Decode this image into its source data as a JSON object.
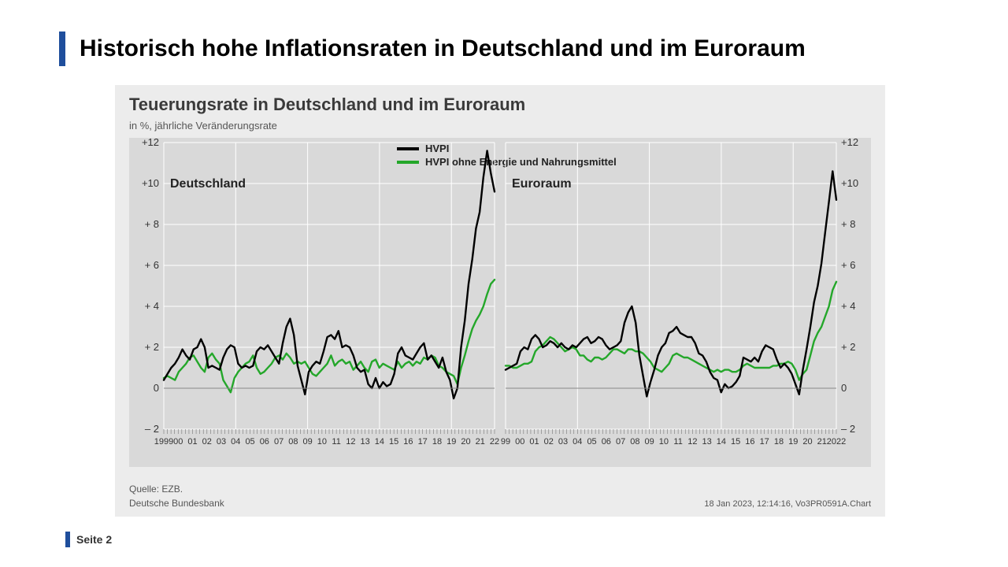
{
  "accent_color": "#1f4e9c",
  "page_title": "Historisch hohe Inflationsraten in Deutschland und im Euroraum",
  "page_number": "Seite 2",
  "chart": {
    "type": "line",
    "background_card": "#ececec",
    "background_plot": "#d9d9d9",
    "gridline_color": "#ffffff",
    "gridline_width": 1,
    "title": "Teuerungsrate in Deutschland und im Euroraum",
    "subtitle": "in %, jährliche Veränderungsrate",
    "title_fontsize": 22,
    "subtitle_fontsize": 13,
    "legend": {
      "items": [
        {
          "label": "HVPI",
          "color": "#000000",
          "width": 2.4
        },
        {
          "label": "HVPI ohne Energie und Nahrungsmittel",
          "color": "#24a72a",
          "width": 2.4
        }
      ]
    },
    "yaxis": {
      "min": -2,
      "max": 12,
      "ticks": [
        -2,
        0,
        2,
        4,
        6,
        8,
        10,
        12
      ],
      "tick_labels": [
        "– 2",
        "0",
        "+ 2",
        "+ 4",
        "+ 6",
        "+ 8",
        "+10",
        "+12"
      ]
    },
    "xaxis": {
      "start_year": 1999,
      "end_year": 2022,
      "tick_years": [
        1999,
        2000,
        2001,
        2002,
        2003,
        2004,
        2005,
        2006,
        2007,
        2008,
        2009,
        2010,
        2011,
        2012,
        2013,
        2014,
        2015,
        2016,
        2017,
        2018,
        2019,
        2020,
        2021,
        2022
      ],
      "left_labels": [
        "1999",
        "00",
        "01",
        "02",
        "03",
        "04",
        "05",
        "06",
        "07",
        "08",
        "09",
        "10",
        "11",
        "12",
        "13",
        "14",
        "15",
        "16",
        "17",
        "18",
        "19",
        "20",
        "21",
        "22"
      ],
      "right_labels": [
        "99",
        "00",
        "01",
        "02",
        "03",
        "04",
        "05",
        "06",
        "07",
        "08",
        "09",
        "10",
        "11",
        "12",
        "13",
        "14",
        "15",
        "16",
        "17",
        "18",
        "19",
        "20",
        "21",
        "2022"
      ]
    },
    "panels": [
      {
        "label": "Deutschland",
        "series": {
          "hvpi": [
            0.4,
            0.7,
            1.0,
            1.2,
            1.5,
            1.9,
            1.6,
            1.4,
            1.9,
            2.0,
            2.4,
            2.0,
            1.0,
            1.1,
            1.0,
            0.9,
            1.5,
            1.9,
            2.1,
            2.0,
            1.2,
            1.0,
            1.1,
            1.0,
            1.1,
            1.8,
            2.0,
            1.9,
            2.1,
            1.8,
            1.5,
            1.2,
            2.2,
            3.0,
            3.4,
            2.6,
            1.1,
            0.4,
            -0.3,
            0.8,
            1.1,
            1.3,
            1.2,
            1.8,
            2.5,
            2.6,
            2.4,
            2.8,
            2.0,
            2.1,
            2.0,
            1.6,
            1.0,
            0.8,
            0.9,
            0.2,
            0.0,
            0.5,
            0.0,
            0.3,
            0.1,
            0.2,
            0.7,
            1.7,
            2.0,
            1.6,
            1.5,
            1.4,
            1.7,
            2.0,
            2.2,
            1.4,
            1.6,
            1.3,
            1.0,
            1.5,
            0.8,
            0.4,
            -0.5,
            0.0,
            2.0,
            3.3,
            5.1,
            6.3,
            7.8,
            8.6,
            10.3,
            11.6,
            10.5,
            9.6
          ],
          "core": [
            0.5,
            0.6,
            0.5,
            0.4,
            0.8,
            1.0,
            1.2,
            1.5,
            1.6,
            1.3,
            1.0,
            0.8,
            1.5,
            1.7,
            1.4,
            1.2,
            0.4,
            0.1,
            -0.2,
            0.5,
            0.8,
            1.0,
            1.2,
            1.3,
            1.6,
            1.0,
            0.7,
            0.8,
            1.0,
            1.2,
            1.5,
            1.6,
            1.4,
            1.7,
            1.5,
            1.2,
            1.3,
            1.2,
            1.3,
            1.0,
            0.7,
            0.6,
            0.8,
            1.0,
            1.2,
            1.6,
            1.1,
            1.3,
            1.4,
            1.2,
            1.3,
            0.9,
            1.1,
            1.3,
            1.0,
            0.8,
            1.3,
            1.4,
            1.0,
            1.2,
            1.1,
            1.0,
            0.9,
            1.3,
            1.0,
            1.2,
            1.3,
            1.1,
            1.3,
            1.2,
            1.5,
            1.4,
            1.6,
            1.5,
            1.1,
            1.0,
            0.8,
            0.7,
            0.6,
            0.2,
            1.0,
            1.6,
            2.3,
            2.9,
            3.3,
            3.6,
            4.0,
            4.6,
            5.1,
            5.3
          ]
        }
      },
      {
        "label": "Euroraum",
        "series": {
          "hvpi": [
            0.9,
            1.0,
            1.1,
            1.2,
            1.8,
            2.0,
            1.9,
            2.4,
            2.6,
            2.4,
            2.0,
            2.1,
            2.3,
            2.2,
            2.0,
            2.2,
            2.0,
            1.9,
            2.1,
            2.0,
            2.2,
            2.4,
            2.5,
            2.2,
            2.3,
            2.5,
            2.4,
            2.1,
            1.9,
            2.0,
            2.1,
            2.3,
            3.2,
            3.7,
            4.0,
            3.2,
            1.6,
            0.6,
            -0.4,
            0.3,
            0.9,
            1.6,
            2.0,
            2.2,
            2.7,
            2.8,
            3.0,
            2.7,
            2.6,
            2.5,
            2.5,
            2.2,
            1.7,
            1.6,
            1.3,
            0.8,
            0.5,
            0.4,
            -0.2,
            0.2,
            0.0,
            0.1,
            0.3,
            0.6,
            1.5,
            1.4,
            1.3,
            1.5,
            1.3,
            1.8,
            2.1,
            2.0,
            1.9,
            1.4,
            1.0,
            1.2,
            1.0,
            0.7,
            0.2,
            -0.3,
            0.9,
            1.9,
            3.0,
            4.2,
            5.0,
            6.1,
            7.6,
            9.1,
            10.6,
            9.2
          ],
          "core": [
            1.1,
            1.1,
            1.0,
            1.0,
            1.1,
            1.2,
            1.2,
            1.3,
            1.8,
            2.0,
            2.1,
            2.3,
            2.5,
            2.4,
            2.2,
            2.0,
            1.8,
            1.9,
            2.0,
            1.9,
            1.6,
            1.6,
            1.4,
            1.3,
            1.5,
            1.5,
            1.4,
            1.5,
            1.7,
            1.9,
            1.9,
            1.8,
            1.7,
            1.9,
            1.9,
            1.8,
            1.8,
            1.7,
            1.5,
            1.3,
            1.0,
            0.9,
            0.8,
            1.0,
            1.2,
            1.6,
            1.7,
            1.6,
            1.5,
            1.5,
            1.4,
            1.3,
            1.2,
            1.1,
            1.0,
            0.9,
            0.8,
            0.9,
            0.8,
            0.9,
            0.9,
            0.8,
            0.8,
            0.9,
            1.1,
            1.2,
            1.1,
            1.0,
            1.0,
            1.0,
            1.0,
            1.0,
            1.1,
            1.1,
            1.2,
            1.2,
            1.3,
            1.2,
            0.9,
            0.4,
            0.7,
            0.9,
            1.6,
            2.3,
            2.7,
            3.0,
            3.5,
            4.0,
            4.8,
            5.2
          ]
        }
      }
    ],
    "source_line1": "Quelle: EZB.",
    "source_line2": "Deutsche Bundesbank",
    "timestamp": "18 Jan 2023, 12:14:16, Vo3PR0591A.Chart"
  }
}
